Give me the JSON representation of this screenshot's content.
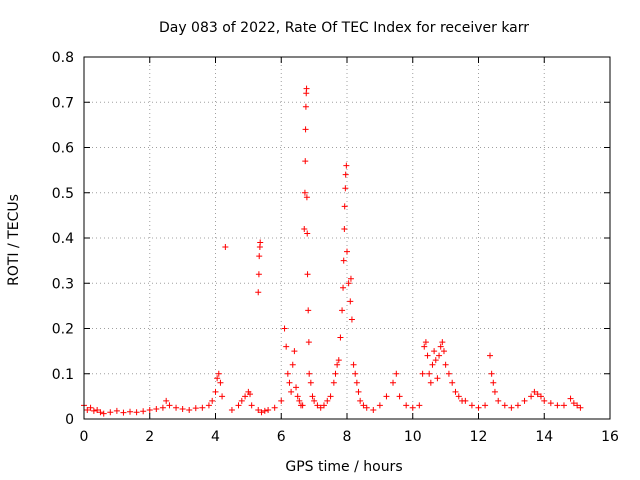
{
  "chart_data": {
    "type": "scatter",
    "title": "Day 083 of 2022, Rate Of TEC Index for receiver karr",
    "xlabel": "GPS time / hours",
    "ylabel": "ROTI / TECUs",
    "xlim": [
      0,
      16
    ],
    "ylim": [
      0,
      0.8
    ],
    "xticks": [
      0,
      2,
      4,
      6,
      8,
      10,
      12,
      14,
      16
    ],
    "yticks": [
      0,
      0.1,
      0.2,
      0.3,
      0.4,
      0.5,
      0.6,
      0.7,
      0.8
    ],
    "xtick_labels": [
      "0",
      "2",
      "4",
      "6",
      "8",
      "10",
      "12",
      "14",
      "16"
    ],
    "ytick_labels": [
      "0",
      "0.1",
      "0.2",
      "0.3",
      "0.4",
      "0.5",
      "0.6",
      "0.7",
      "0.8"
    ],
    "grid": true,
    "marker": "plus",
    "color": "#ff0000",
    "series": [
      {
        "name": "ROTI",
        "x": [
          0.0,
          0.1,
          0.2,
          0.3,
          0.4,
          0.5,
          0.6,
          0.8,
          1.0,
          1.2,
          1.4,
          1.6,
          1.8,
          2.0,
          2.2,
          2.4,
          2.5,
          2.6,
          2.8,
          3.0,
          3.2,
          3.4,
          3.6,
          3.8,
          3.9,
          4.0,
          4.05,
          4.1,
          4.15,
          4.2,
          4.3,
          4.5,
          4.7,
          4.8,
          4.9,
          5.0,
          5.05,
          5.1,
          5.3,
          5.3,
          5.32,
          5.33,
          5.35,
          5.36,
          5.4,
          5.5,
          5.6,
          5.8,
          6.0,
          6.1,
          6.15,
          6.2,
          6.25,
          6.3,
          6.35,
          6.4,
          6.45,
          6.5,
          6.55,
          6.6,
          6.65,
          6.7,
          6.72,
          6.73,
          6.74,
          6.75,
          6.76,
          6.77,
          6.78,
          6.79,
          6.8,
          6.82,
          6.84,
          6.85,
          6.9,
          6.95,
          7.0,
          7.1,
          7.2,
          7.3,
          7.4,
          7.5,
          7.6,
          7.65,
          7.7,
          7.75,
          7.8,
          7.85,
          7.88,
          7.9,
          7.92,
          7.93,
          7.95,
          7.96,
          7.98,
          8.0,
          8.05,
          8.1,
          8.12,
          8.15,
          8.2,
          8.25,
          8.3,
          8.35,
          8.4,
          8.5,
          8.6,
          8.8,
          9.0,
          9.2,
          9.4,
          9.5,
          9.6,
          9.8,
          10.0,
          10.2,
          10.3,
          10.35,
          10.4,
          10.45,
          10.5,
          10.55,
          10.6,
          10.65,
          10.7,
          10.75,
          10.8,
          10.85,
          10.9,
          10.95,
          11.0,
          11.1,
          11.2,
          11.3,
          11.4,
          11.5,
          11.6,
          11.8,
          12.0,
          12.2,
          12.35,
          12.4,
          12.45,
          12.5,
          12.6,
          12.8,
          13.0,
          13.2,
          13.4,
          13.6,
          13.7,
          13.8,
          13.9,
          14.0,
          14.2,
          14.4,
          14.6,
          14.8,
          14.9,
          15.0,
          15.1
        ],
        "y": [
          0.03,
          0.02,
          0.025,
          0.018,
          0.02,
          0.015,
          0.012,
          0.015,
          0.018,
          0.014,
          0.016,
          0.015,
          0.017,
          0.02,
          0.022,
          0.025,
          0.04,
          0.03,
          0.025,
          0.022,
          0.02,
          0.024,
          0.025,
          0.03,
          0.04,
          0.06,
          0.09,
          0.1,
          0.08,
          0.05,
          0.38,
          0.02,
          0.03,
          0.04,
          0.05,
          0.06,
          0.055,
          0.03,
          0.02,
          0.28,
          0.32,
          0.36,
          0.38,
          0.39,
          0.015,
          0.018,
          0.02,
          0.025,
          0.04,
          0.2,
          0.16,
          0.1,
          0.08,
          0.06,
          0.12,
          0.15,
          0.07,
          0.05,
          0.04,
          0.03,
          0.03,
          0.42,
          0.5,
          0.57,
          0.64,
          0.69,
          0.72,
          0.73,
          0.49,
          0.41,
          0.32,
          0.24,
          0.17,
          0.1,
          0.08,
          0.05,
          0.04,
          0.03,
          0.025,
          0.03,
          0.04,
          0.05,
          0.08,
          0.1,
          0.12,
          0.13,
          0.18,
          0.24,
          0.29,
          0.35,
          0.42,
          0.47,
          0.51,
          0.54,
          0.56,
          0.37,
          0.3,
          0.26,
          0.31,
          0.22,
          0.12,
          0.1,
          0.08,
          0.06,
          0.04,
          0.03,
          0.025,
          0.02,
          0.03,
          0.05,
          0.08,
          0.1,
          0.05,
          0.03,
          0.025,
          0.03,
          0.1,
          0.16,
          0.17,
          0.14,
          0.1,
          0.08,
          0.12,
          0.15,
          0.13,
          0.09,
          0.14,
          0.16,
          0.17,
          0.15,
          0.12,
          0.1,
          0.08,
          0.06,
          0.05,
          0.04,
          0.04,
          0.03,
          0.025,
          0.03,
          0.14,
          0.1,
          0.08,
          0.06,
          0.04,
          0.03,
          0.025,
          0.03,
          0.04,
          0.05,
          0.06,
          0.055,
          0.05,
          0.04,
          0.035,
          0.03,
          0.03,
          0.045,
          0.035,
          0.03,
          0.025
        ]
      }
    ]
  }
}
